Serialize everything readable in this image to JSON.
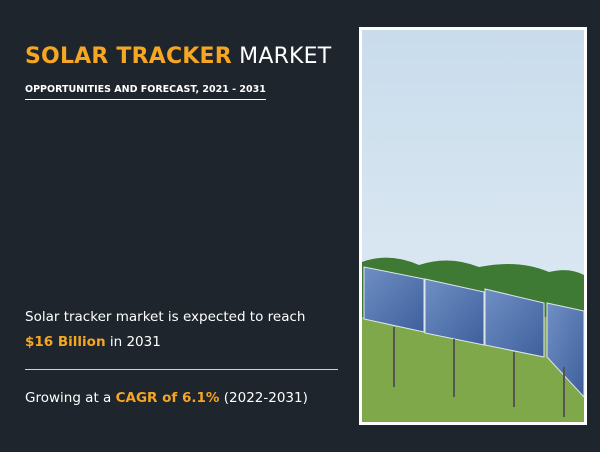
{
  "header": {
    "title_highlight": "SOLAR TRACKER",
    "title_rest": "MARKET",
    "subtitle": "OPPORTUNITIES AND FORECAST, 2021 - 2031"
  },
  "facts": [
    {
      "before": "Solar tracker market is expected to reach",
      "highlight": "$16 Billion",
      "after": "in 2031"
    },
    {
      "before": "Growing at a",
      "highlight": "CAGR of 6.1%",
      "after": "(2022-2031)"
    }
  ]
}
